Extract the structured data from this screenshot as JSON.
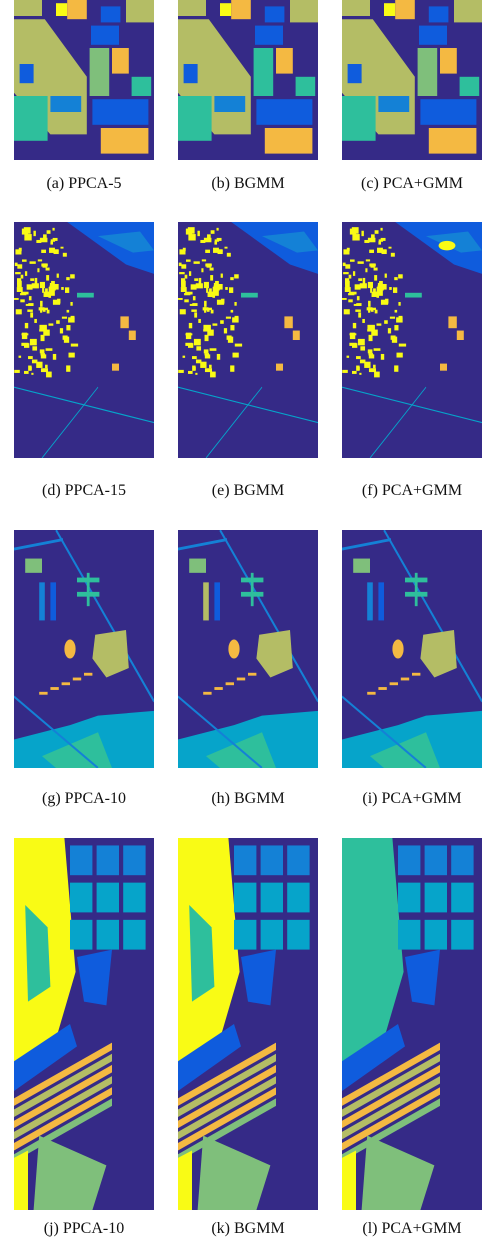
{
  "figures": [
    {
      "caption": "(a) PPCA-5"
    },
    {
      "caption": "(b) BGMM"
    },
    {
      "caption": "(c) PCA+GMM"
    },
    {
      "caption": "(d) PPCA-15"
    },
    {
      "caption": "(e) BGMM"
    },
    {
      "caption": "(f) PCA+GMM"
    },
    {
      "caption": "(g) PPCA-10"
    },
    {
      "caption": "(h) BGMM"
    },
    {
      "caption": "(i) PCA+GMM"
    },
    {
      "caption": "(j) PPCA-10"
    },
    {
      "caption": "(k) BGMM"
    },
    {
      "caption": "(l) PCA+GMM"
    }
  ]
}
